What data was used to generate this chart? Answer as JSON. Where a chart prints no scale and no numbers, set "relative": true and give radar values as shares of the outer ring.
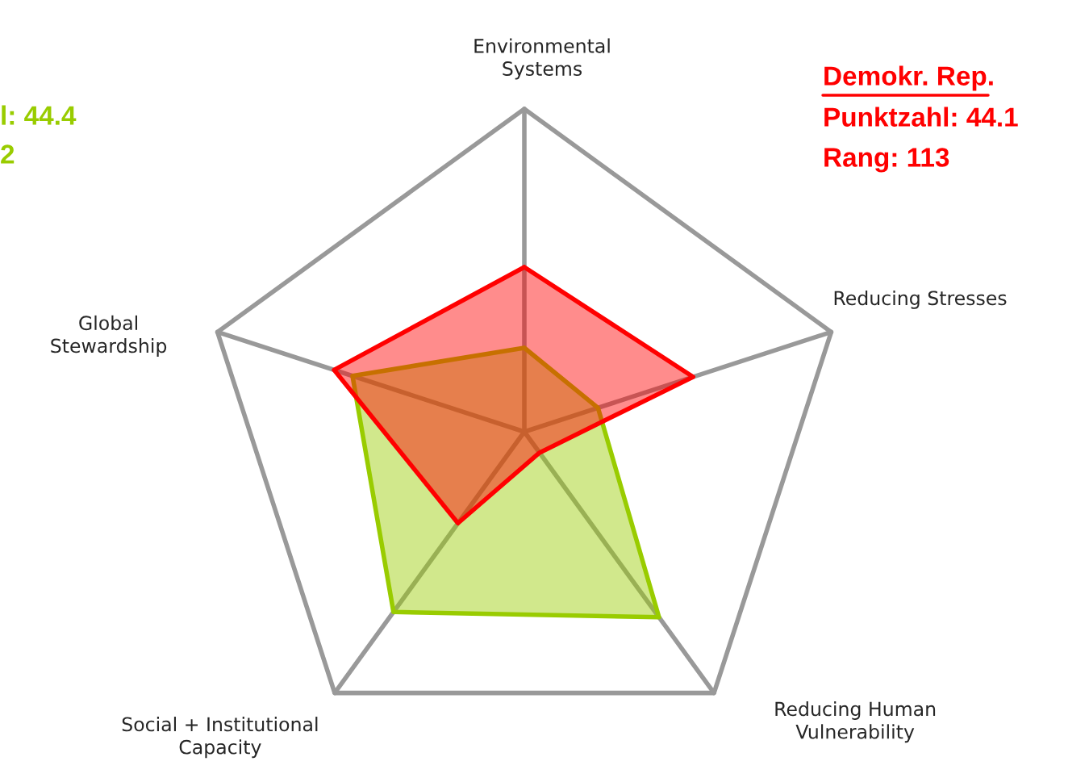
{
  "chart_data": {
    "type": "radar",
    "relative": true,
    "grid": true,
    "categories": [
      "Environmental\nSystems",
      "Reducing Stresses",
      "Reducing Human\nVulnerability",
      "Social + Institutional\nCapacity",
      "Global\nStewardship"
    ],
    "series": [
      {
        "name": "Demokr. Rep.",
        "color": "#ff0000",
        "values": [
          0.51,
          0.55,
          0.08,
          0.35,
          0.62
        ]
      },
      {
        "color": "#99cc00",
        "values": [
          0.26,
          0.24,
          0.71,
          0.69,
          0.56
        ]
      }
    ],
    "annotations": [
      "Punktzahl: 44.1",
      "Rang: 113",
      "l: 44.4",
      "2"
    ]
  }
}
